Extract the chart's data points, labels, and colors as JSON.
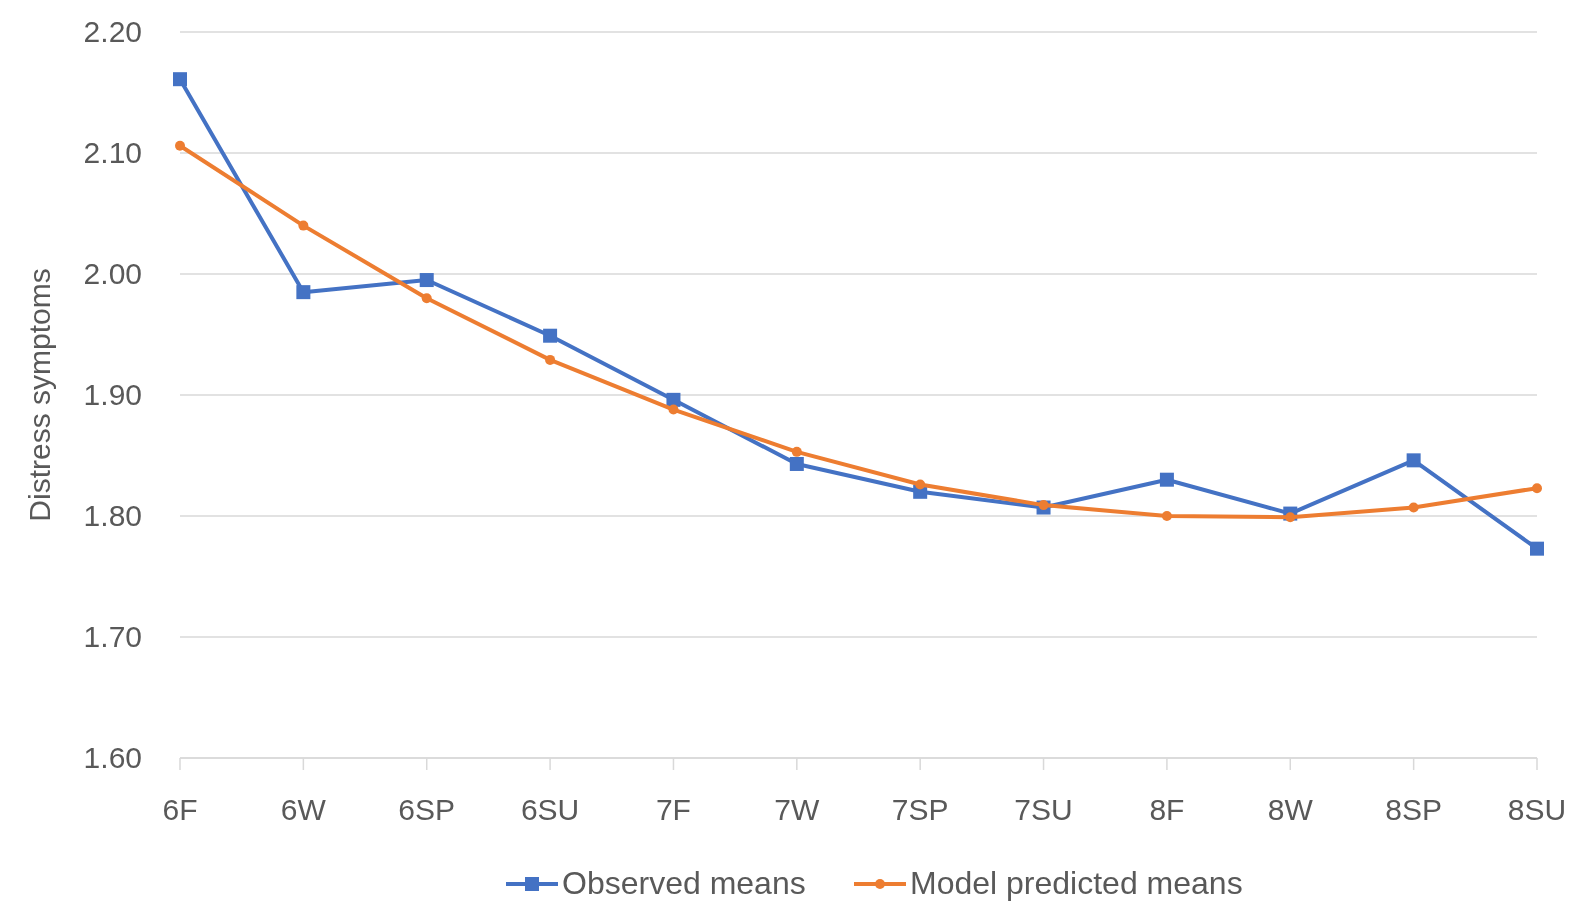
{
  "chart_data": {
    "type": "line",
    "ylabel": "Distress symptoms",
    "categories": [
      "6F",
      "6W",
      "6SP",
      "6SU",
      "7F",
      "7W",
      "7SP",
      "7SU",
      "8F",
      "8W",
      "8SP",
      "8SU"
    ],
    "series": [
      {
        "name": "Observed means",
        "color": "#4472c4",
        "marker": "square",
        "values": [
          2.161,
          1.985,
          1.995,
          1.949,
          1.896,
          1.843,
          1.82,
          1.807,
          1.83,
          1.802,
          1.846,
          1.773
        ]
      },
      {
        "name": "Model predicted means",
        "color": "#ed7d31",
        "marker": "circle",
        "values": [
          2.106,
          2.04,
          1.98,
          1.929,
          1.888,
          1.853,
          1.826,
          1.809,
          1.8,
          1.799,
          1.807,
          1.823
        ]
      }
    ],
    "ylim": [
      1.6,
      2.2
    ],
    "yticks": [
      {
        "value": 1.6,
        "label": "1.60"
      },
      {
        "value": 1.7,
        "label": "1.70"
      },
      {
        "value": 1.8,
        "label": "1.80"
      },
      {
        "value": 1.9,
        "label": "1.90"
      },
      {
        "value": 2.0,
        "label": "2.00"
      },
      {
        "value": 2.1,
        "label": "2.10"
      },
      {
        "value": 2.2,
        "label": "2.20"
      }
    ],
    "grid": "y",
    "legend": "bottom",
    "line_style": "solid"
  }
}
